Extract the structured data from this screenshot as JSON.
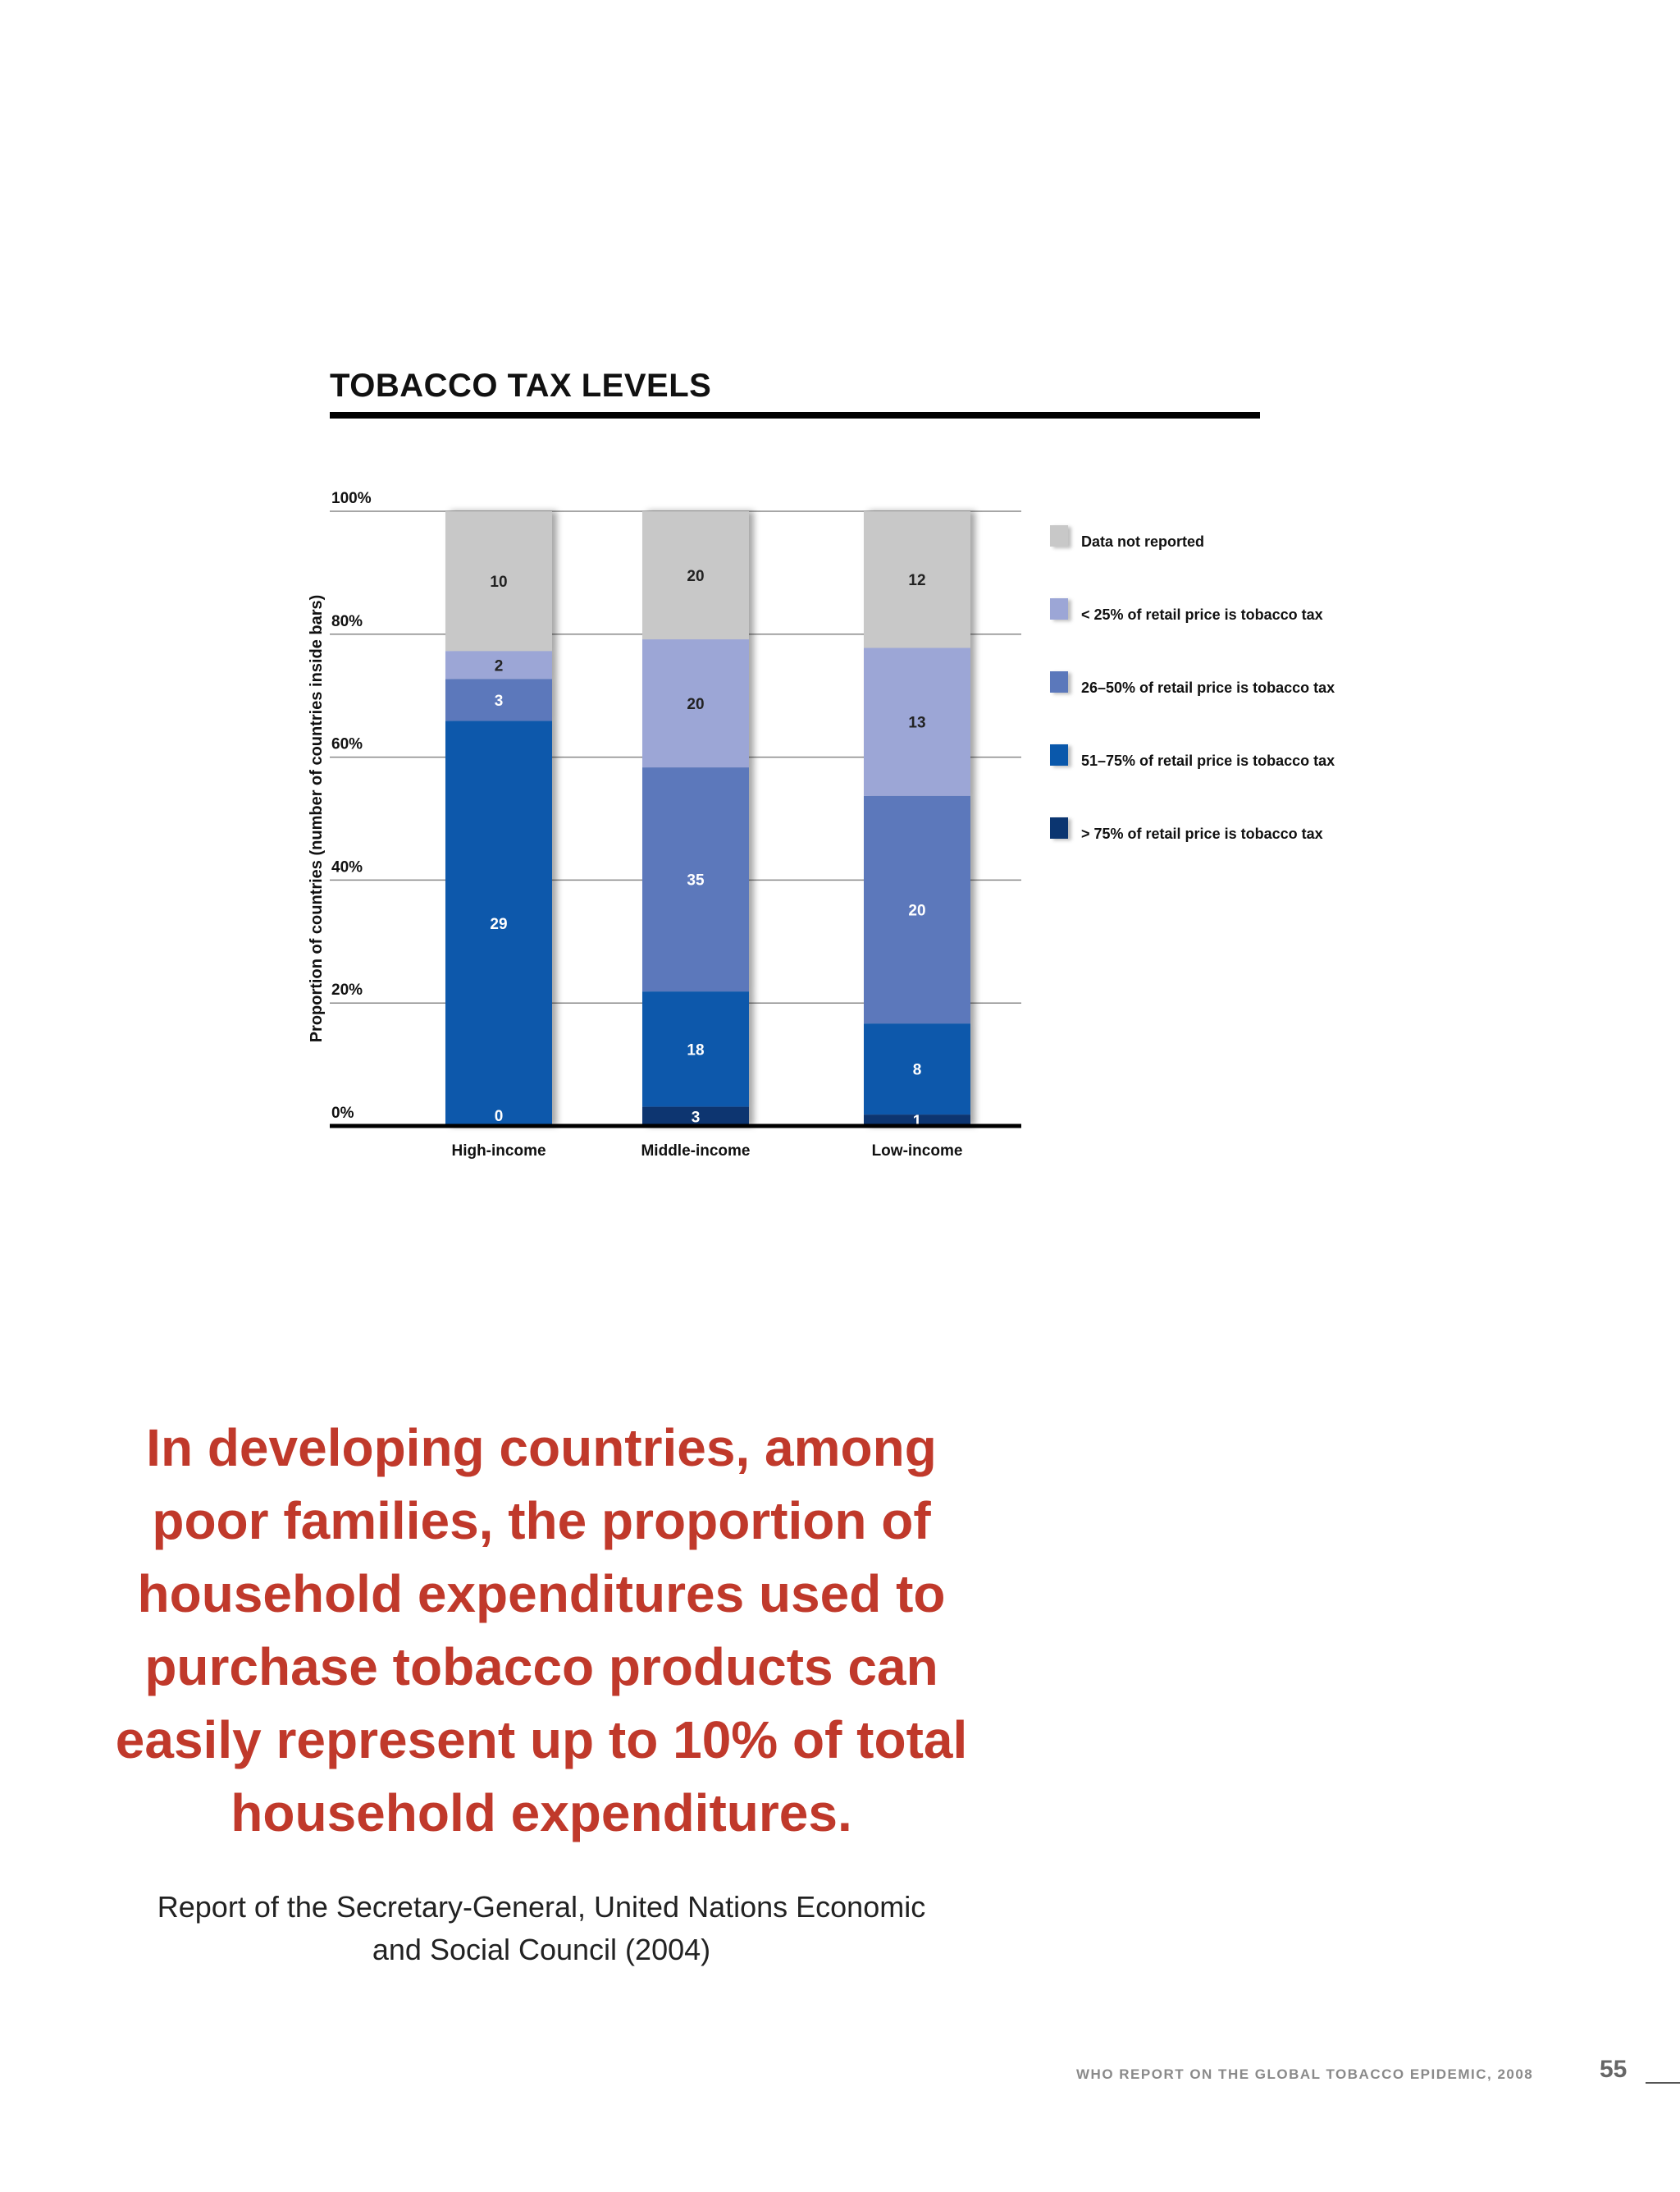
{
  "chart_data": {
    "type": "bar",
    "stacked": true,
    "title": "TOBACCO TAX LEVELS",
    "ylabel": "Proportion of countries (number of countries inside bars)",
    "xlabel": "",
    "ylim": [
      0,
      100
    ],
    "y_ticks": [
      "0%",
      "20%",
      "40%",
      "60%",
      "80%",
      "100%"
    ],
    "categories": [
      "High-income",
      "Middle-income",
      "Low-income"
    ],
    "series": [
      {
        "name": "> 75% of retail price is tobacco tax",
        "color": "#0b3570",
        "values": [
          0,
          3,
          1
        ]
      },
      {
        "name": "51–75% of retail price is tobacco tax",
        "color": "#0a58ab",
        "values": [
          29,
          18,
          8
        ]
      },
      {
        "name": "26–50% of retail price is tobacco tax",
        "color": "#5b78bb",
        "values": [
          3,
          35,
          20
        ]
      },
      {
        "name": "< 25% of retail price is tobacco tax",
        "color": "#9ca6d6",
        "values": [
          2,
          20,
          13
        ]
      },
      {
        "name": "Data not reported",
        "color": "#c8c8c8",
        "values": [
          10,
          20,
          12
        ]
      }
    ],
    "legend_position": "right",
    "grid": true
  },
  "quote": {
    "text": "In developing countries, among poor families, the proportion of household expenditures used to purchase tobacco products can easily represent up to 10% of total household expenditures."
  },
  "source": {
    "text": "Report of the Secretary-General, United Nations Economic and Social Council (2004)"
  },
  "footer": {
    "report": "WHO REPORT ON THE GLOBAL TOBACCO EPIDEMIC, 2008",
    "page": "55"
  }
}
